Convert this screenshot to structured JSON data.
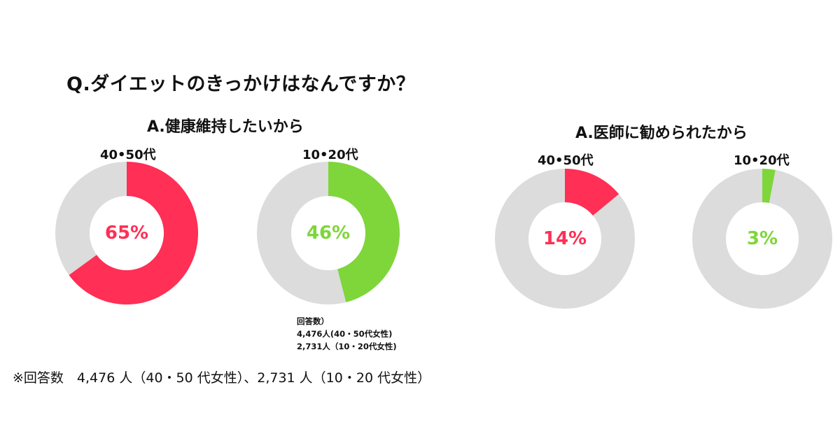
{
  "question": "Q.ダイエットのきっかけはなんですか？",
  "groups": [
    {
      "title": "A.健康維持したいから"
    },
    {
      "title": "A.医師に勧められたから"
    }
  ],
  "legend": {
    "heading": "回答数）",
    "line1": "4,476人(40・50代女性)",
    "line2": "2,731人（10・20代女性)"
  },
  "footnote": "※回答数　4,476 人（40・50 代女性）、2,731 人（10・20 代女性）",
  "colors": {
    "red": "#ff2f55",
    "green": "#7ed63a",
    "gray": "#dcdcdc"
  },
  "chart_data": [
    {
      "type": "pie",
      "title": "A.健康維持したいから",
      "label": "40•50代",
      "value": 65,
      "display": "65%",
      "color": "#ff2f55"
    },
    {
      "type": "pie",
      "title": "A.健康維持したいから",
      "label": "10•20代",
      "value": 46,
      "display": "46%",
      "color": "#7ed63a"
    },
    {
      "type": "pie",
      "title": "A.医師に勧められたから",
      "label": "40•50代",
      "value": 14,
      "display": "14%",
      "color": "#ff2f55"
    },
    {
      "type": "pie",
      "title": "A.医師に勧められたから",
      "label": "10•20代",
      "value": 3,
      "display": "3%",
      "color": "#7ed63a"
    }
  ]
}
